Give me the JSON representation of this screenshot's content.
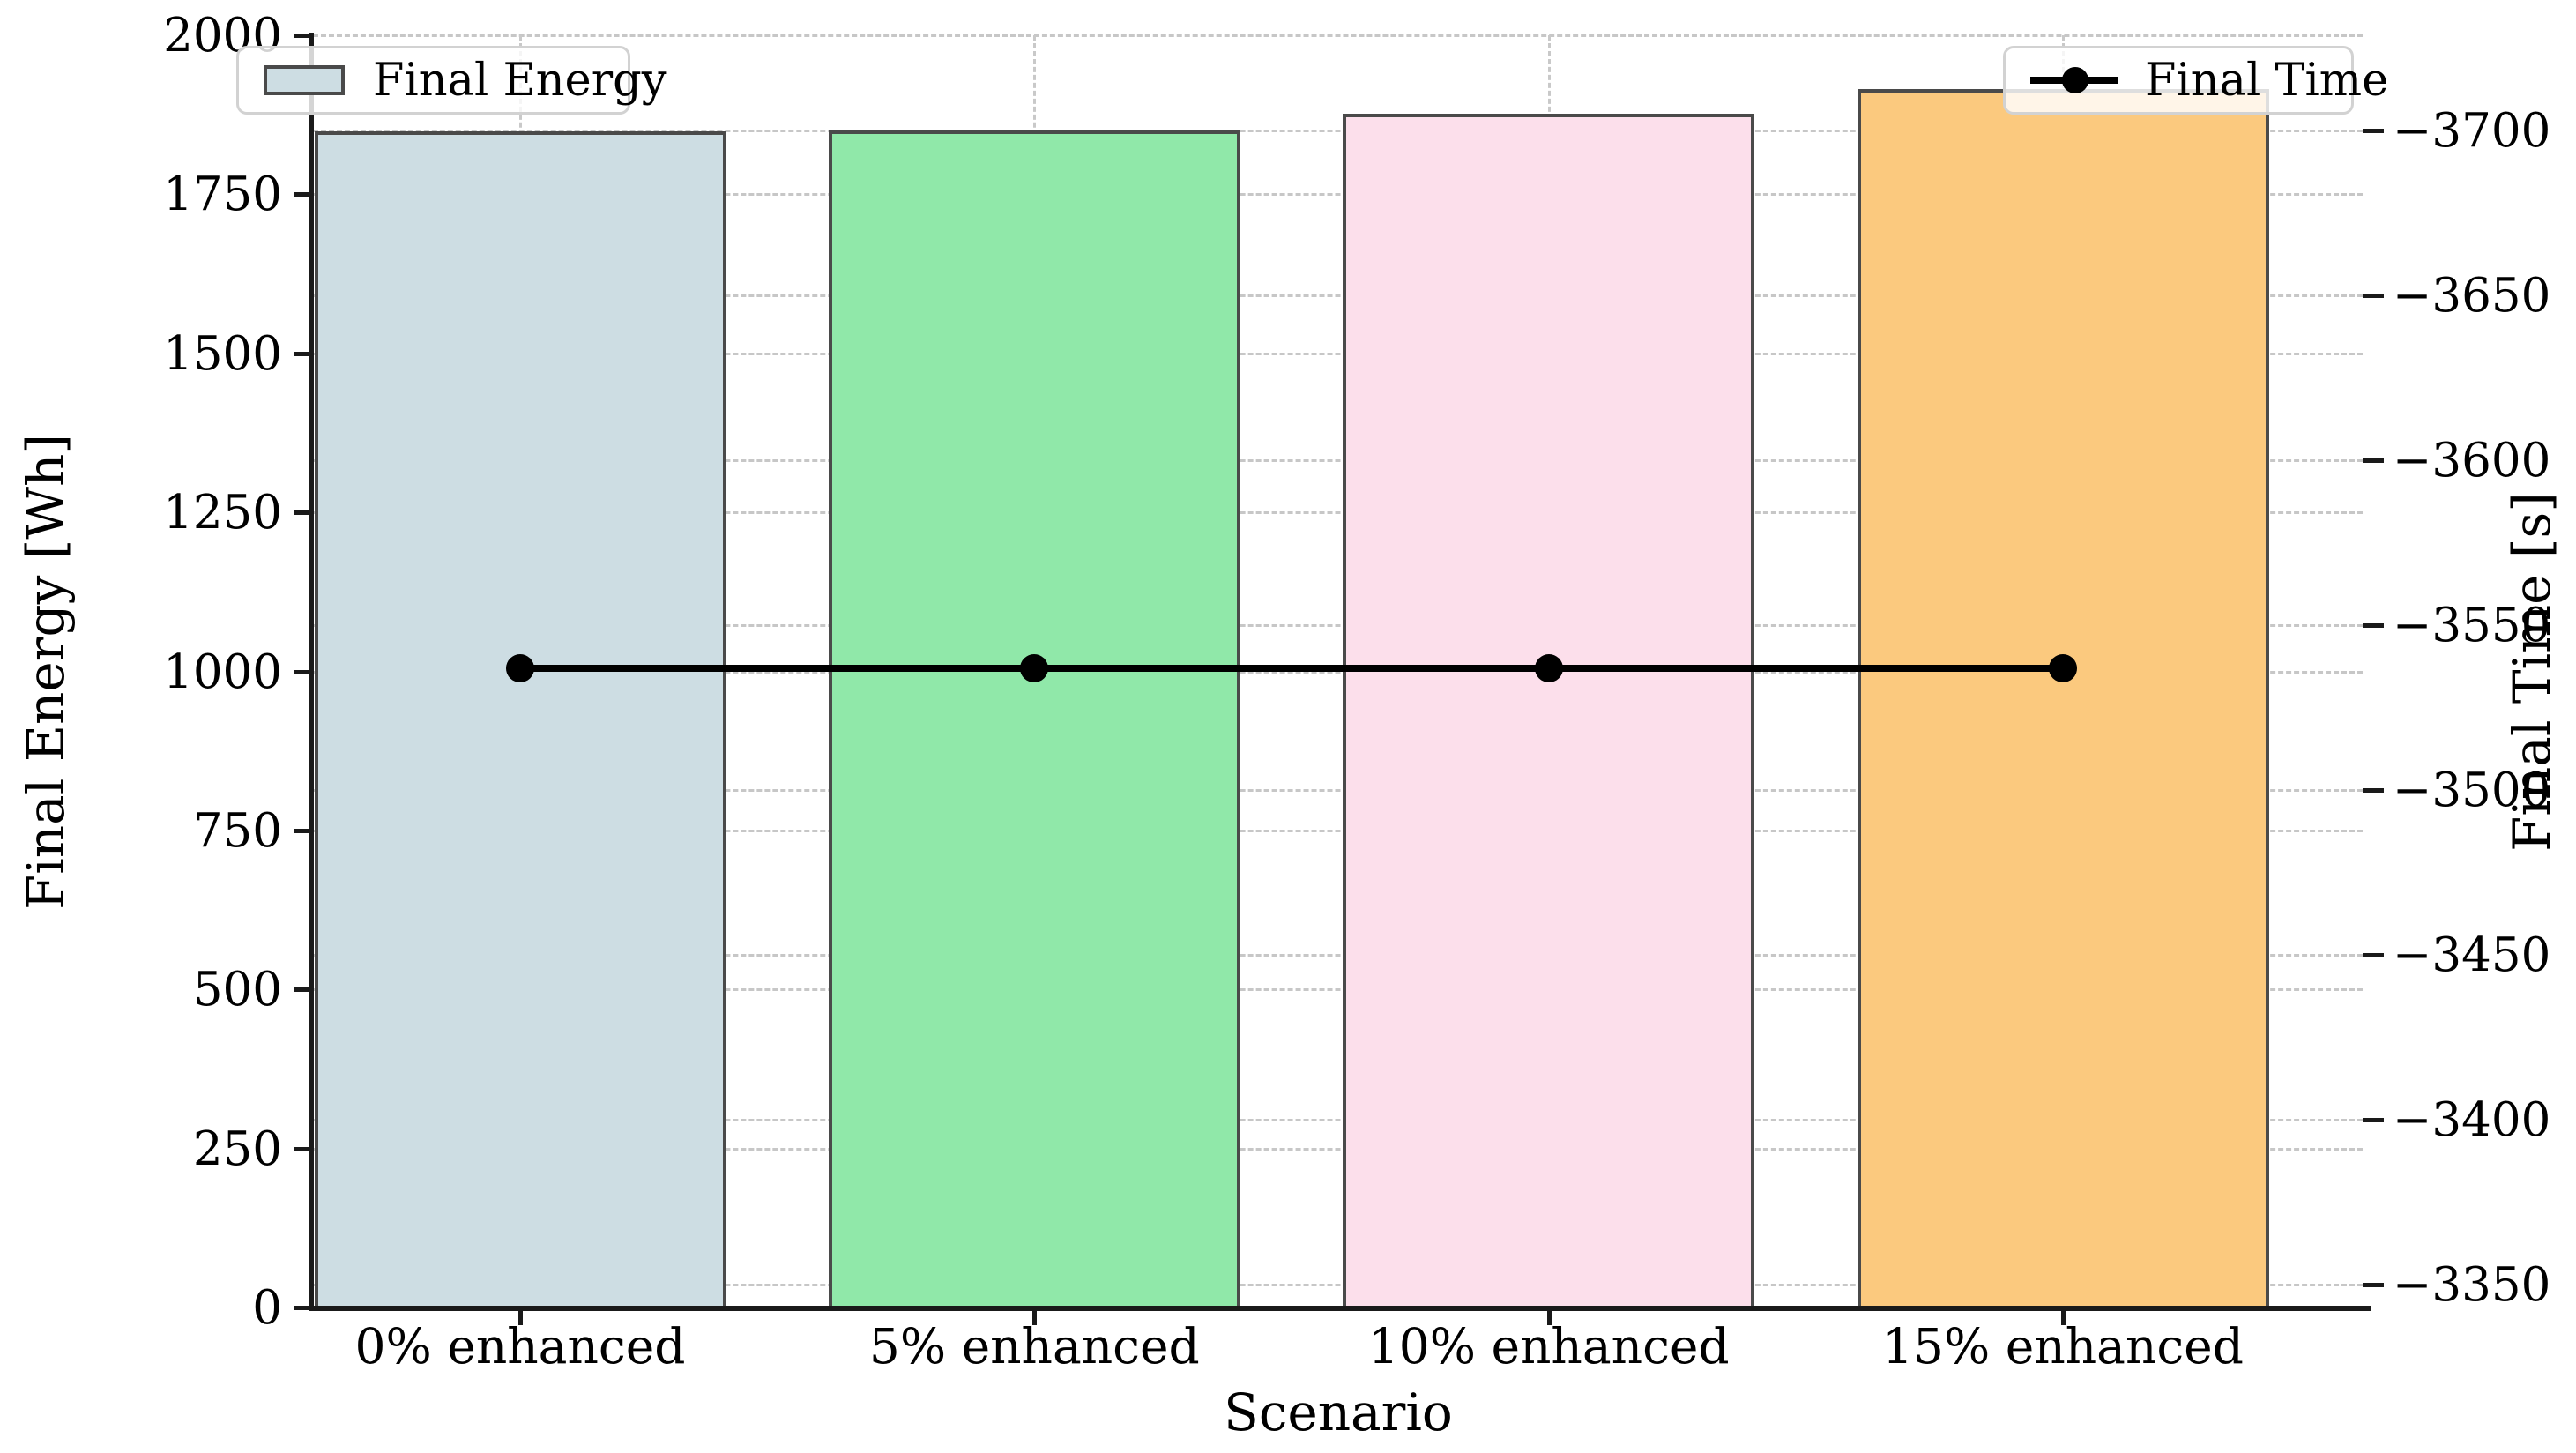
{
  "chart_data": {
    "type": "bar",
    "subtype": "dual-axis bar + line",
    "categories": [
      "0% enhanced",
      "5% enhanced",
      "10% enhanced",
      "15% enhanced"
    ],
    "series": [
      {
        "name": "Final Energy",
        "axis": "left",
        "plot": "bar",
        "values": [
          1849,
          1851,
          1876,
          1915
        ],
        "bar_colors": [
          "#cddde3",
          "#90e8a9",
          "#fcdfeb",
          "#fbc97e"
        ],
        "edge_color": "#4a4a4a"
      },
      {
        "name": "Final Time",
        "axis": "right",
        "plot": "line",
        "values": [
          -3537,
          -3537,
          -3537,
          -3537
        ],
        "color": "#000000",
        "marker": "circle"
      }
    ],
    "title": "",
    "xlabel": "Scenario",
    "ylabel_left": "Final Energy [Wh]",
    "ylabel_right": "Final Time [s]",
    "ylim_left": [
      0,
      2000
    ],
    "yticks_left": [
      0,
      250,
      500,
      750,
      1000,
      1250,
      1500,
      1750,
      2000
    ],
    "ytick_labels_left": [
      "0",
      "250",
      "500",
      "750",
      "1000",
      "1250",
      "1500",
      "1750",
      "2000"
    ],
    "ylim_right_bottom_top": [
      -3343,
      -3729
    ],
    "yticks_right": [
      -3350,
      -3400,
      -3450,
      -3500,
      -3550,
      -3600,
      -3650,
      -3700
    ],
    "ytick_labels_right": [
      "−3350",
      "−3400",
      "−3450",
      "−3500",
      "−3550",
      "−3600",
      "−3650",
      "−3700"
    ],
    "grid": true,
    "grid_style": "dashed, light gray, horizontal lines at both axes' major ticks, vertical lines at bar centers",
    "legend_positions": {
      "energy": "upper left",
      "time": "upper right"
    }
  },
  "legend": {
    "energy_label": "Final Energy",
    "time_label": "Final Time"
  },
  "axes": {
    "xlabel": "Scenario",
    "ylabel_left": "Final Energy [Wh]",
    "ylabel_right": "Final Time [s]"
  },
  "colors": {
    "grid": "#c7c7c7",
    "spine": "#1a1a1a",
    "line_series": "#000000",
    "legend_border": "#d2d2d2"
  }
}
